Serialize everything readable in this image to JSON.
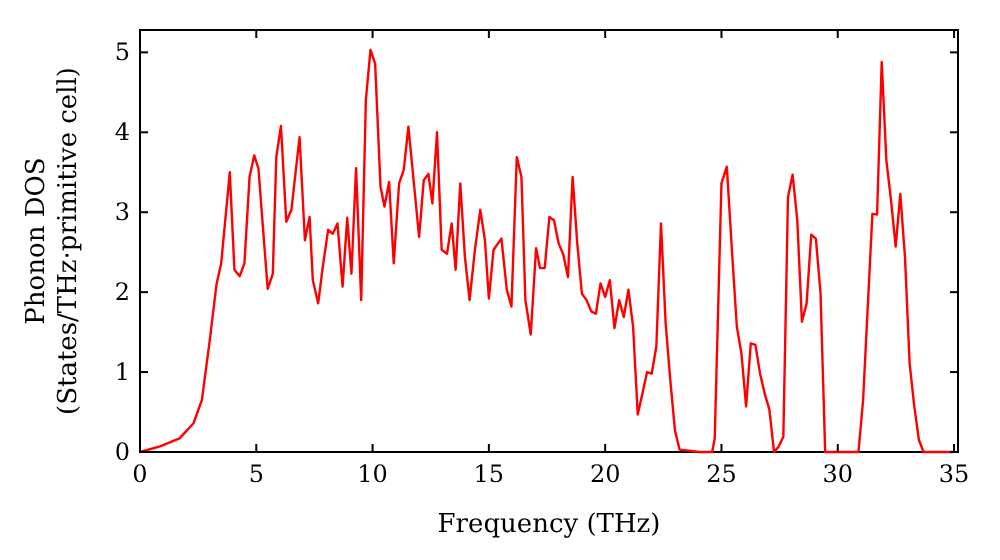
{
  "chart_data": {
    "type": "line",
    "xlabel": "Frequency (THz)",
    "ylabel": "Phonon DOS\n(States/THz·primitive cell)",
    "xlim": [
      0,
      35.17
    ],
    "ylim": [
      0,
      5.28
    ],
    "xticks": [
      0,
      5,
      10,
      15,
      20,
      25,
      30,
      35
    ],
    "yticks": [
      0,
      1,
      2,
      3,
      4,
      5
    ],
    "grid": false,
    "marker": "none",
    "line_style": "solid",
    "series": [
      {
        "color": "#ff0000",
        "x": [
          0,
          0.86,
          1.7,
          2.3,
          2.66,
          3.0,
          3.29,
          3.49,
          3.86,
          4.06,
          4.29,
          4.49,
          4.71,
          4.91,
          5.09,
          5.49,
          5.71,
          5.86,
          6.06,
          6.29,
          6.51,
          6.86,
          7.09,
          7.29,
          7.43,
          7.66,
          7.86,
          8.09,
          8.29,
          8.49,
          8.71,
          8.91,
          9.09,
          9.29,
          9.51,
          9.71,
          9.91,
          10.11,
          10.34,
          10.51,
          10.71,
          10.91,
          11.14,
          11.34,
          11.54,
          12.0,
          12.2,
          12.4,
          12.57,
          12.77,
          12.97,
          13.2,
          13.4,
          13.57,
          13.77,
          13.97,
          14.17,
          14.4,
          14.63,
          14.83,
          15.0,
          15.2,
          15.54,
          15.77,
          15.97,
          16.2,
          16.4,
          16.57,
          16.8,
          17.03,
          17.2,
          17.4,
          17.6,
          17.8,
          18.0,
          18.2,
          18.4,
          18.6,
          18.8,
          19.0,
          19.2,
          19.4,
          19.6,
          19.8,
          20.0,
          20.2,
          20.4,
          20.6,
          20.8,
          21.0,
          21.2,
          21.4,
          21.6,
          21.8,
          22.0,
          22.2,
          22.4,
          22.6,
          22.8,
          23.0,
          23.2,
          24.06,
          24.6,
          24.71,
          25.0,
          25.23,
          25.46,
          25.66,
          25.86,
          26.06,
          26.26,
          26.46,
          26.66,
          26.86,
          27.06,
          27.26,
          27.46,
          27.66,
          27.86,
          28.06,
          28.26,
          28.46,
          28.66,
          28.86,
          29.06,
          29.26,
          29.46,
          30.89,
          31.09,
          31.29,
          31.49,
          31.69,
          31.89,
          32.09,
          32.29,
          32.49,
          32.69,
          32.89,
          33.09,
          33.29,
          33.49,
          33.69,
          34.94
        ],
        "values": [
          0,
          0.07,
          0.17,
          0.36,
          0.65,
          1.4,
          2.1,
          2.36,
          3.5,
          2.28,
          2.2,
          2.36,
          3.44,
          3.71,
          3.55,
          2.04,
          2.23,
          3.69,
          4.08,
          2.88,
          3.03,
          3.94,
          2.65,
          2.94,
          2.15,
          1.86,
          2.32,
          2.78,
          2.73,
          2.86,
          2.07,
          2.93,
          2.23,
          3.55,
          1.9,
          4.4,
          5.03,
          4.86,
          3.32,
          3.07,
          3.38,
          2.36,
          3.36,
          3.53,
          4.07,
          2.69,
          3.4,
          3.48,
          3.11,
          4.0,
          2.53,
          2.48,
          2.86,
          2.28,
          3.36,
          2.44,
          1.9,
          2.53,
          3.03,
          2.65,
          1.92,
          2.53,
          2.67,
          2.03,
          1.82,
          3.69,
          3.44,
          1.9,
          1.47,
          2.55,
          2.3,
          2.3,
          2.94,
          2.9,
          2.61,
          2.47,
          2.19,
          3.44,
          2.61,
          1.98,
          1.9,
          1.76,
          1.73,
          2.11,
          1.94,
          2.15,
          1.55,
          1.9,
          1.69,
          2.03,
          1.57,
          0.47,
          0.73,
          1.0,
          0.98,
          1.32,
          2.86,
          1.61,
          0.9,
          0.27,
          0.03,
          0,
          0,
          0.17,
          3.36,
          3.57,
          2.48,
          1.57,
          1.23,
          0.57,
          1.36,
          1.34,
          0.98,
          0.73,
          0.53,
          0,
          0.07,
          0.19,
          3.19,
          3.47,
          2.9,
          1.63,
          1.86,
          2.72,
          2.67,
          1.98,
          0,
          0,
          0.65,
          1.82,
          2.98,
          2.97,
          4.88,
          3.65,
          3.15,
          2.57,
          3.23,
          2.44,
          1.11,
          0.57,
          0.15,
          0,
          0
        ]
      }
    ]
  }
}
